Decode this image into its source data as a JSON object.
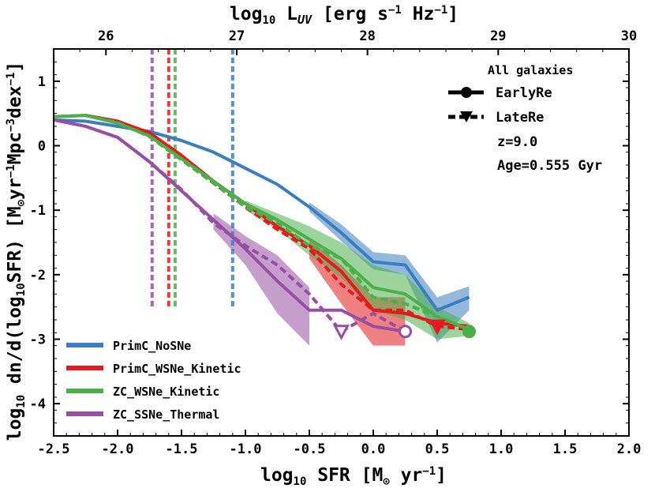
{
  "chart_data": {
    "type": "line",
    "xlabel_main": "log",
    "xlabel_sub": "10",
    "xlabel_rest": " SFR [M",
    "xlabel_sun": "⊙",
    "xlabel_tail": " yr",
    "xlabel_sup": "−1",
    "xlabel_end": "]",
    "ylabel_parts": [
      "log",
      "10",
      " dn/d(log",
      "10",
      "SFR)  [M",
      "⊙",
      "yr",
      "−1",
      "Mpc",
      "−3",
      "dex",
      "−1",
      "]"
    ],
    "top_label_parts": [
      "log",
      "10",
      " L",
      "UV",
      " [erg s",
      "−1",
      " Hz",
      "−1",
      "]"
    ],
    "xlim": [
      -2.5,
      2.0
    ],
    "ylim": [
      -4.5,
      1.5
    ],
    "top_lim": [
      25.6,
      30.0
    ],
    "x_ticks": [
      "-2.5",
      "-2.0",
      "-1.5",
      "-1.0",
      "-0.5",
      "0.0",
      "0.5",
      "1.0",
      "1.5",
      "2.0"
    ],
    "x_tick_values": [
      -2.5,
      -2.0,
      -1.5,
      -1.0,
      -0.5,
      0.0,
      0.5,
      1.0,
      1.5,
      2.0
    ],
    "y_ticks": [
      "1",
      "0",
      "-1",
      "-2",
      "-3",
      "-4"
    ],
    "y_tick_values": [
      1,
      0,
      -1,
      -2,
      -3,
      -4
    ],
    "top_ticks": [
      "26",
      "27",
      "28",
      "29",
      "30"
    ],
    "top_tick_values": [
      26,
      27,
      28,
      29,
      30
    ],
    "legend_title": "All galaxies",
    "style_legend": [
      "EarlyRe",
      "LateRe"
    ],
    "info_lines": [
      "z=9.0",
      "Age=0.555 Gyr"
    ],
    "series": [
      {
        "name": "PrimC_NoSNe",
        "color": "#3a7ebf",
        "vline": -1.1,
        "early": {
          "x": [
            -2.5,
            -2.25,
            -2.0,
            -1.75,
            -1.5,
            -1.25,
            -1.0,
            -0.75,
            -0.5,
            -0.25,
            0.0,
            0.25,
            0.5,
            0.75
          ],
          "y": [
            0.4,
            0.38,
            0.3,
            0.22,
            0.08,
            -0.1,
            -0.35,
            -0.6,
            -0.95,
            -1.35,
            -1.8,
            -1.85,
            -2.55,
            -2.35
          ]
        },
        "band": {
          "x": [
            -0.5,
            -0.25,
            0.0,
            0.25,
            0.5,
            0.75
          ],
          "lo": [
            -1.02,
            -1.48,
            -1.92,
            -2.0,
            -3.05,
            -2.55
          ],
          "hi": [
            -0.88,
            -1.22,
            -1.65,
            -1.7,
            -2.35,
            -2.18
          ]
        },
        "late": {
          "x": [],
          "y": []
        }
      },
      {
        "name": "PrimC_WSNe_Kinetic",
        "color": "#e41a1c",
        "vline": -1.6,
        "early": {
          "x": [
            -2.5,
            -2.25,
            -2.0,
            -1.75,
            -1.5,
            -1.25,
            -1.0,
            -0.75,
            -0.5,
            -0.25,
            0.0,
            0.25,
            0.5,
            0.75
          ],
          "y": [
            0.45,
            0.47,
            0.38,
            0.2,
            -0.15,
            -0.55,
            -0.9,
            -1.25,
            -1.55,
            -1.95,
            -2.55,
            -2.6,
            -2.75,
            -2.8
          ]
        },
        "late": {
          "x": [
            -2.25,
            -2.0,
            -1.75,
            -1.5,
            -1.25,
            -1.0,
            -0.75,
            -0.5,
            -0.25,
            0.0,
            0.25,
            0.5,
            0.75
          ],
          "y": [
            0.47,
            0.38,
            0.18,
            -0.18,
            -0.58,
            -0.95,
            -1.3,
            -1.6,
            -2.15,
            -2.55,
            -2.55,
            -2.8,
            -2.85
          ]
        },
        "late_marker_x": 0.5,
        "late_marker_y": -2.8,
        "band": {
          "x": [
            -0.5,
            -0.25,
            0.0,
            0.25
          ],
          "lo": [
            -1.75,
            -2.45,
            -3.1,
            -3.1
          ],
          "hi": [
            -1.45,
            -1.85,
            -2.35,
            -2.35
          ]
        }
      },
      {
        "name": "ZC_WSNe_Kinetic",
        "color": "#4daf4a",
        "vline": -1.55,
        "early": {
          "x": [
            -2.5,
            -2.25,
            -2.0,
            -1.75,
            -1.5,
            -1.25,
            -1.0,
            -0.75,
            -0.5,
            -0.25,
            0.0,
            0.25,
            0.5,
            0.75
          ],
          "y": [
            0.45,
            0.47,
            0.35,
            0.15,
            -0.2,
            -0.55,
            -0.9,
            -1.15,
            -1.45,
            -1.75,
            -2.2,
            -2.3,
            -2.65,
            -2.85
          ]
        },
        "late": {
          "x": [
            -2.25,
            -2.0,
            -1.75,
            -1.5,
            -1.25,
            -1.0,
            -0.75,
            -0.5,
            -0.25,
            0.0,
            0.25,
            0.5,
            0.75
          ],
          "y": [
            0.47,
            0.36,
            0.14,
            -0.22,
            -0.58,
            -0.95,
            -1.2,
            -1.55,
            -1.75,
            -2.35,
            -2.45,
            -2.65,
            -2.85
          ]
        },
        "early_marker_x": 0.75,
        "early_marker_y": -2.88,
        "band": {
          "x": [
            -1.0,
            -0.75,
            -0.5,
            -0.25,
            0.0,
            0.25,
            0.5,
            0.75
          ],
          "lo": [
            -1.0,
            -1.3,
            -1.7,
            -2.05,
            -2.55,
            -2.7,
            -3.0,
            -2.95
          ],
          "hi": [
            -0.85,
            -1.05,
            -1.25,
            -1.5,
            -1.85,
            -2.0,
            -2.5,
            -2.75
          ]
        }
      },
      {
        "name": "ZC_SSNe_Thermal",
        "color": "#984ea3",
        "vline": -1.73,
        "early": {
          "x": [
            -2.5,
            -2.25,
            -2.0,
            -1.75,
            -1.5,
            -1.25,
            -1.0,
            -0.75,
            -0.5,
            -0.25,
            0.0,
            0.25
          ],
          "y": [
            0.4,
            0.3,
            0.13,
            -0.25,
            -0.7,
            -1.15,
            -1.6,
            -2.1,
            -2.55,
            -2.55,
            -2.8,
            -2.88
          ]
        },
        "late": {
          "x": [
            -2.25,
            -2.0,
            -1.75,
            -1.5,
            -1.25,
            -1.0,
            -0.75,
            -0.5,
            -0.25,
            0.0,
            0.25
          ],
          "y": [
            0.3,
            0.13,
            -0.25,
            -0.68,
            -1.2,
            -1.55,
            -1.85,
            -2.3,
            -2.88,
            -2.6,
            -2.88
          ]
        },
        "late_marker_x": -0.25,
        "late_marker_y": -2.88,
        "early_marker_x": 0.25,
        "early_marker_y": -2.88,
        "band": {
          "x": [
            -1.25,
            -1.0,
            -0.75,
            -0.5
          ],
          "lo": [
            -1.3,
            -1.85,
            -2.6,
            -3.1
          ],
          "hi": [
            -1.05,
            -1.4,
            -1.7,
            -2.2
          ]
        }
      }
    ]
  }
}
